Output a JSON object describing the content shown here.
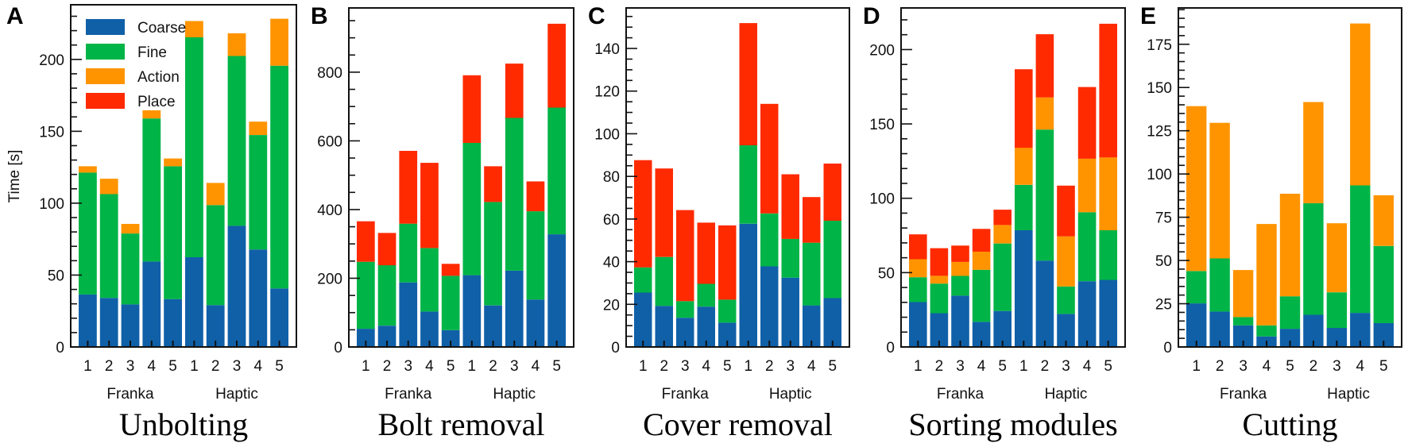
{
  "chart_data": {
    "type": "bar",
    "stacked": true,
    "legend": {
      "placement": "top-left of panel A",
      "entries": [
        "Coarse",
        "Fine",
        "Action",
        "Place"
      ]
    },
    "series_colors": {
      "Coarse": "#1060A8",
      "Fine": "#00B447",
      "Action": "#FF9400",
      "Place": "#FF2A00"
    },
    "ylabel": "Time [s]",
    "group_labels": [
      "Franka",
      "Haptic"
    ],
    "panels": [
      {
        "letter": "A",
        "title": "Unbolting",
        "categories": [
          "1",
          "2",
          "3",
          "4",
          "5",
          "1",
          "2",
          "3",
          "4",
          "5"
        ],
        "groups": [
          "Franka",
          "Franka",
          "Franka",
          "Franka",
          "Franka",
          "Haptic",
          "Haptic",
          "Haptic",
          "Haptic",
          "Haptic"
        ],
        "ylim": [
          0,
          238
        ],
        "yticks": [
          0,
          50,
          100,
          150,
          200
        ],
        "minor_tick_step": 10,
        "series": [
          {
            "name": "Coarse",
            "values": [
              36.5,
              34.1,
              29.6,
              59.4,
              33.3,
              62.4,
              29.1,
              84.3,
              67.8,
              40.7
            ]
          },
          {
            "name": "Fine",
            "values": [
              84.8,
              72.2,
              49.3,
              99.5,
              92.4,
              153.0,
              69.6,
              118.1,
              79.6,
              154.9
            ]
          },
          {
            "name": "Action",
            "values": [
              4.4,
              10.7,
              6.7,
              5.7,
              5.4,
              11.3,
              15.4,
              15.8,
              9.3,
              32.7
            ]
          },
          {
            "name": "Place",
            "values": [
              0,
              0,
              0,
              0,
              0,
              0,
              0,
              0,
              0,
              0
            ]
          }
        ]
      },
      {
        "letter": "B",
        "title": "Bolt removal",
        "categories": [
          "1",
          "2",
          "3",
          "4",
          "5",
          "1",
          "2",
          "3",
          "4",
          "5"
        ],
        "groups": [
          "Franka",
          "Franka",
          "Franka",
          "Franka",
          "Franka",
          "Haptic",
          "Haptic",
          "Haptic",
          "Haptic",
          "Haptic"
        ],
        "ylim": [
          0,
          987
        ],
        "yticks": [
          0,
          200,
          400,
          600,
          800
        ],
        "minor_tick_step": 50,
        "series": [
          {
            "name": "Coarse",
            "values": [
              53,
              62,
              188,
              103,
              49,
              209,
              121,
              222,
              138,
              328
            ]
          },
          {
            "name": "Fine",
            "values": [
              195,
              176,
              171,
              185,
              158,
              385,
              301,
              445,
              257,
              369
            ]
          },
          {
            "name": "Action",
            "values": [
              0,
              0,
              0,
              0,
              0,
              0,
              0,
              0,
              0,
              0
            ]
          },
          {
            "name": "Place",
            "values": [
              118,
              94,
              212,
              248,
              35,
              197,
              104,
              158,
              87,
              244
            ]
          }
        ]
      },
      {
        "letter": "C",
        "title": "Cover removal",
        "categories": [
          "1",
          "2",
          "3",
          "4",
          "5",
          "1",
          "2",
          "3",
          "4",
          "5"
        ],
        "groups": [
          "Franka",
          "Franka",
          "Franka",
          "Franka",
          "Franka",
          "Haptic",
          "Haptic",
          "Haptic",
          "Haptic",
          "Haptic"
        ],
        "ylim": [
          0,
          159
        ],
        "yticks": [
          0,
          20,
          40,
          60,
          80,
          100,
          120,
          140
        ],
        "minor_tick_step": 5,
        "series": [
          {
            "name": "Coarse",
            "values": [
              25.5,
              19.3,
              13.7,
              18.9,
              11.4,
              57.8,
              37.8,
              32.5,
              19.5,
              22.9
            ]
          },
          {
            "name": "Fine",
            "values": [
              11.8,
              22.9,
              7.8,
              10.7,
              10.8,
              36.8,
              24.8,
              18.2,
              29.4,
              36.3
            ]
          },
          {
            "name": "Action",
            "values": [
              0,
              0,
              0,
              0,
              0,
              0,
              0,
              0,
              0,
              0
            ]
          },
          {
            "name": "Place",
            "values": [
              50.3,
              41.5,
              42.7,
              28.7,
              34.8,
              57.3,
              51.4,
              30.3,
              21.4,
              26.8
            ]
          }
        ]
      },
      {
        "letter": "D",
        "title": "Sorting modules",
        "categories": [
          "1",
          "2",
          "3",
          "4",
          "5",
          "1",
          "2",
          "3",
          "4",
          "5"
        ],
        "groups": [
          "Franka",
          "Franka",
          "Franka",
          "Franka",
          "Franka",
          "Haptic",
          "Haptic",
          "Haptic",
          "Haptic",
          "Haptic"
        ],
        "ylim": [
          0,
          228
        ],
        "yticks": [
          0,
          50,
          100,
          150,
          200
        ],
        "minor_tick_step": 10,
        "series": [
          {
            "name": "Coarse",
            "values": [
              30.2,
              22.7,
              34.5,
              16.9,
              24.2,
              78.5,
              58.1,
              22.2,
              44.2,
              45.1
            ]
          },
          {
            "name": "Fine",
            "values": [
              16.7,
              19.9,
              13.3,
              35.0,
              45.4,
              30.5,
              88.1,
              18.5,
              46.4,
              33.4
            ]
          },
          {
            "name": "Action",
            "values": [
              12.1,
              5.2,
              9.4,
              12.2,
              12.4,
              25.0,
              21.6,
              33.7,
              36.0,
              49.0
            ]
          },
          {
            "name": "Place",
            "values": [
              16.7,
              18.6,
              11.0,
              15.3,
              10.3,
              52.8,
              42.5,
              34.1,
              48.2,
              89.9
            ]
          }
        ]
      },
      {
        "letter": "E",
        "title": "Cutting",
        "categories": [
          "1",
          "2",
          "3",
          "4",
          "5",
          "2",
          "3",
          "4",
          "5"
        ],
        "groups": [
          "Franka",
          "Franka",
          "Franka",
          "Franka",
          "Franka",
          "Haptic",
          "Haptic",
          "Haptic",
          "Haptic"
        ],
        "ylim": [
          0,
          196
        ],
        "yticks": [
          0,
          25,
          50,
          75,
          100,
          125,
          150,
          175
        ],
        "minor_tick_step": 5,
        "series": [
          {
            "name": "Coarse",
            "values": [
              25.2,
              20.5,
              12.5,
              6.1,
              10.5,
              18.6,
              11.0,
              19.7,
              13.8
            ]
          },
          {
            "name": "Fine",
            "values": [
              18.7,
              30.7,
              4.8,
              6.4,
              18.8,
              64.5,
              20.6,
              73.7,
              44.6
            ]
          },
          {
            "name": "Action",
            "values": [
              95.3,
              78.4,
              27.2,
              58.6,
              59.3,
              58.5,
              39.9,
              93.6,
              29.3
            ]
          },
          {
            "name": "Place",
            "values": [
              0,
              0,
              0,
              0,
              0,
              0,
              0,
              0,
              0
            ]
          }
        ]
      }
    ]
  }
}
